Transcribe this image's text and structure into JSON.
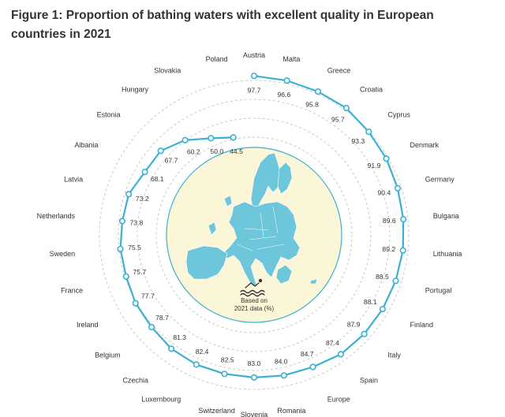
{
  "title": "Figure 1: Proportion of bathing waters with excellent quality in European countries in 2021",
  "chart_data": {
    "type": "radial-line",
    "title": "Figure 1: Proportion of bathing waters with excellent quality in European countries in 2021",
    "center_note": [
      "Based on",
      "2021 data (%)"
    ],
    "series_color": "#3bb0d3",
    "ring_color": "#c8c8c8",
    "scale": [
      0,
      100
    ],
    "categories": [
      "Austria",
      "Malta",
      "Greece",
      "Croatia",
      "Cyprus",
      "Denmark",
      "Germany",
      "Bulgaria",
      "Lithuania",
      "Portugal",
      "Finland",
      "Italy",
      "Spain",
      "Europe",
      "Romania",
      "Slovenia",
      "Switzerland",
      "Luxembourg",
      "Czechia",
      "Belgium",
      "Ireland",
      "France",
      "Sweden",
      "Netherlands",
      "Latvia",
      "Albania",
      "Estonia",
      "Hungary",
      "Slovakia",
      "Poland"
    ],
    "values": [
      97.7,
      96.6,
      95.8,
      95.7,
      93.3,
      91.9,
      90.4,
      89.6,
      89.2,
      88.5,
      88.1,
      87.9,
      87.4,
      84.7,
      84.0,
      83.0,
      82.5,
      82.4,
      81.3,
      78.7,
      77.7,
      75.7,
      75.5,
      73.8,
      73.2,
      68.1,
      67.7,
      60.2,
      50.0,
      44.5
    ],
    "value_labels": [
      "97.7",
      "96.6",
      "95.8",
      "95.7",
      "93.3",
      "91.9",
      "90.4",
      "89.6",
      "89.2",
      "88.5",
      "88.1",
      "87.9",
      "87.4",
      "84.7",
      "84.0",
      "83.0",
      "82.5",
      "82.4",
      "81.3",
      "78.7",
      "77.7",
      "75.7",
      "75.5",
      "73.8",
      "73.2",
      "68.1",
      "67.7",
      "60.2",
      "50.0",
      "44.5"
    ]
  }
}
